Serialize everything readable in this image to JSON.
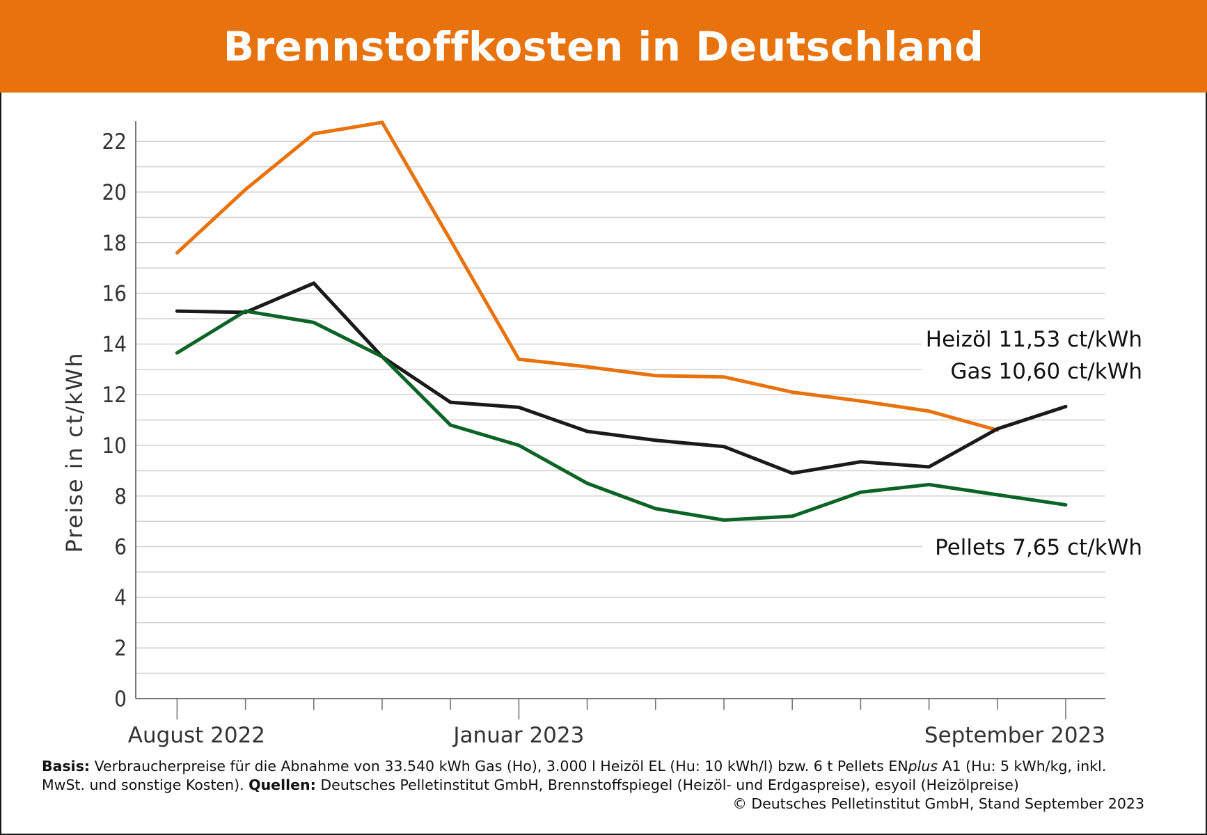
{
  "title": "Brennstoffkosten in Deutschland",
  "chart_data": {
    "type": "line",
    "title": "Brennstoffkosten in Deutschland",
    "ylabel": "Preise in ct/kWh",
    "xlabel": "",
    "ylim": [
      0,
      22.8
    ],
    "yticks": [
      "0",
      "2",
      "4",
      "6",
      "8",
      "10",
      "12",
      "14",
      "16",
      "18",
      "20",
      "22"
    ],
    "grid": true,
    "x_count": 14,
    "x_tick_labels": [
      {
        "index": 0,
        "label": "August 2022"
      },
      {
        "index": 5,
        "label": "Januar 2023"
      },
      {
        "index": 13,
        "label": "September 2023"
      }
    ],
    "series": [
      {
        "name": "Gas",
        "color": "#e8720c",
        "end_label": "Gas 10,60 ct/kWh",
        "values": [
          17.6,
          20.1,
          22.3,
          22.75,
          18.1,
          13.4,
          13.1,
          12.75,
          12.7,
          12.1,
          11.75,
          11.35,
          10.6,
          null
        ]
      },
      {
        "name": "Heizöl",
        "color": "#1a1a1a",
        "end_label": "Heizöl 11,53 ct/kWh",
        "values": [
          15.3,
          15.25,
          16.4,
          13.5,
          11.7,
          11.5,
          10.55,
          10.2,
          9.95,
          8.9,
          9.35,
          9.15,
          10.65,
          11.53
        ]
      },
      {
        "name": "Pellets",
        "color": "#0b6325",
        "end_label": "Pellets 7,65 ct/kWh",
        "values": [
          13.65,
          15.3,
          14.85,
          13.5,
          10.8,
          10.0,
          8.5,
          7.5,
          7.05,
          7.2,
          8.15,
          8.45,
          8.05,
          7.65
        ]
      }
    ]
  },
  "footer": {
    "basis_label": "Basis:",
    "basis_text1": " Verbraucherpreise für die Abnahme von 33.540 kWh Gas (Ho), 3.000 l Heizöl EL (Hu: 10 kWh/l) bzw. 6 t Pellets EN",
    "basis_italic": "plus",
    "basis_text2": " A1 (Hu: 5 kWh/kg, inkl. MwSt. und sonstige Kosten). ",
    "sources_label": "Quellen:",
    "sources_text": " Deutsches Pelletinstitut GmbH, Brennstoffspiegel (Heizöl- und Erdgaspreise), esyoil (Heizölpreise)",
    "copyright": "© Deutsches Pelletinstitut GmbH, Stand September 2023"
  }
}
